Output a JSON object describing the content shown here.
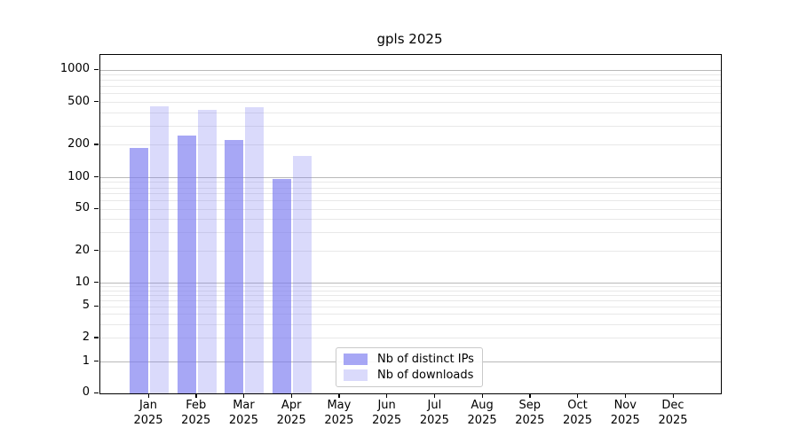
{
  "chart_data": {
    "type": "bar",
    "title": "gpls 2025",
    "categories": [
      "Jan",
      "Feb",
      "Mar",
      "Apr",
      "May",
      "Jun",
      "Jul",
      "Aug",
      "Sep",
      "Oct",
      "Nov",
      "Dec"
    ],
    "year_label": "2025",
    "series": [
      {
        "name": "Nb of distinct IPs",
        "key": "distinct-ips",
        "color": "rgba(120,120,240,0.65)",
        "values": [
          188,
          245,
          224,
          97,
          0,
          0,
          0,
          0,
          0,
          0,
          0,
          0
        ]
      },
      {
        "name": "Nb of downloads",
        "key": "downloads",
        "color": "rgba(120,120,240,0.27)",
        "values": [
          460,
          430,
          455,
          160,
          0,
          0,
          0,
          0,
          0,
          0,
          0,
          0
        ]
      }
    ],
    "yticks": [
      0,
      1,
      2,
      5,
      10,
      20,
      50,
      100,
      200,
      500,
      1000
    ],
    "xlabel": "",
    "ylabel": "",
    "yscale": "symlog",
    "ylim": [
      0,
      1400
    ],
    "grid": "horizontal major+minor",
    "legend_position": "lower center-left inside plot",
    "colors": {
      "bar_base": "#7878f0",
      "grid_major": "#b9b9b9",
      "grid_minor": "#e8e8e8",
      "spine": "#000000"
    }
  }
}
